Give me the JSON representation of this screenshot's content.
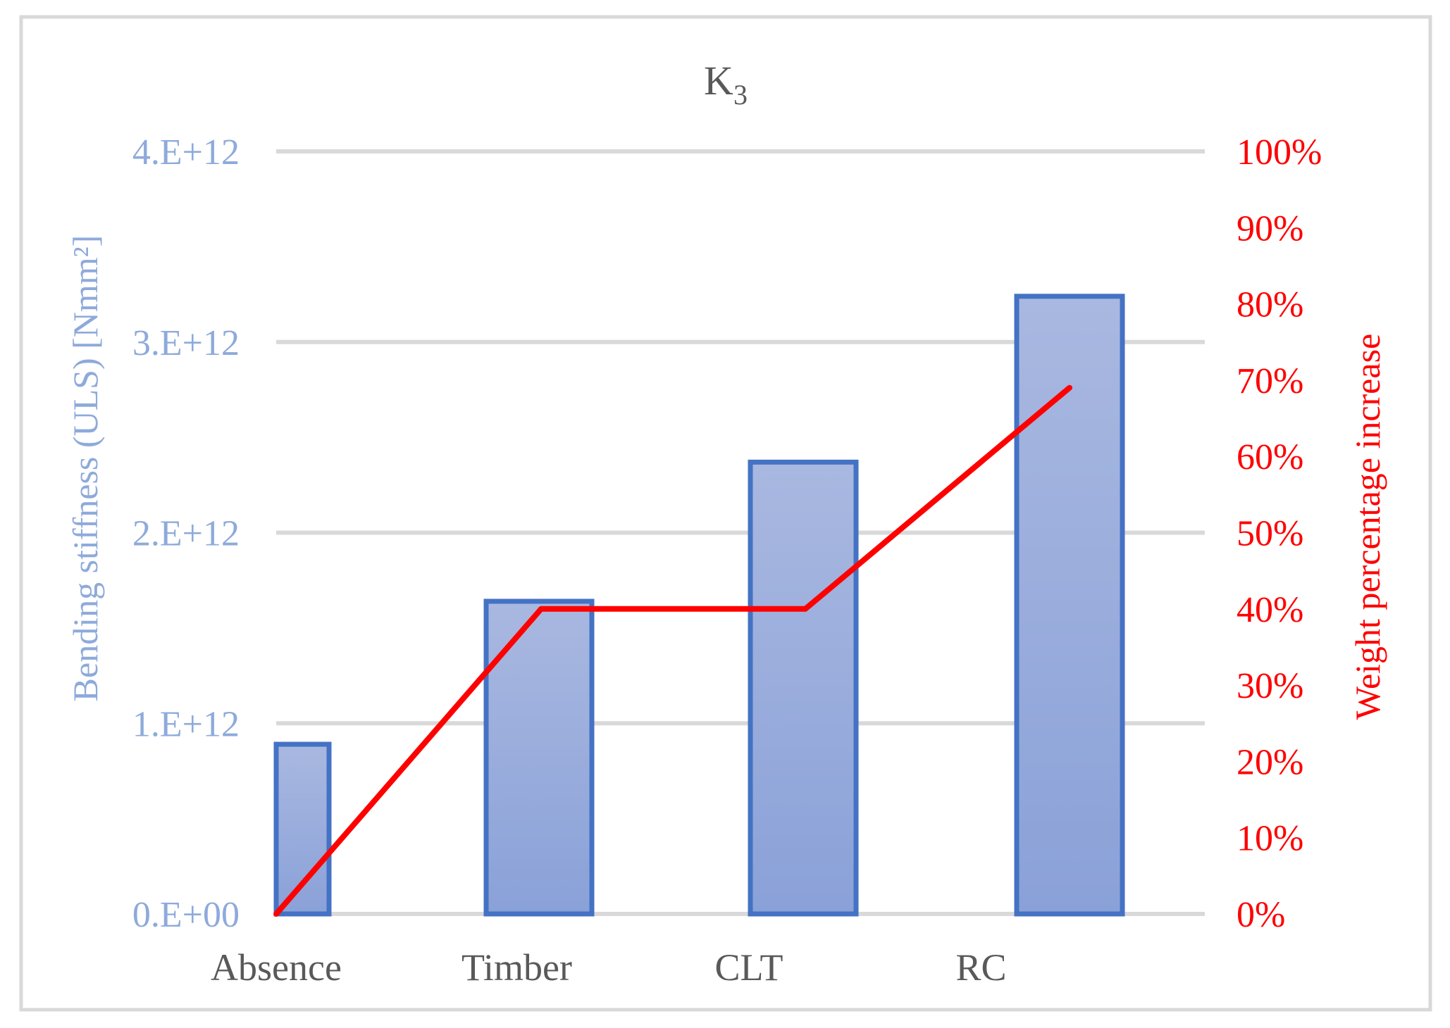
{
  "chart_data": {
    "type": "bar",
    "title": "K",
    "title_subscript": "3",
    "categories": [
      "Absence",
      "Timber",
      "CLT",
      "RC"
    ],
    "series": [
      {
        "name": "",
        "type": "bar",
        "axis": "left",
        "values": [
          890000000000.0,
          1640000000000.0,
          2370000000000.0,
          3240000000000.0
        ]
      },
      {
        "name": "",
        "type": "line",
        "axis": "right",
        "values": [
          0,
          40,
          40,
          69
        ]
      }
    ],
    "y_left": {
      "label": "Bending stiffness (ULS) [Nmm²]",
      "ylim": [
        0,
        4000000000000.0
      ],
      "ticks": [
        0,
        1000000000000.0,
        2000000000000.0,
        3000000000000.0,
        4000000000000.0
      ],
      "tick_labels": [
        "0.E+00",
        "1.E+12",
        "2.E+12",
        "3.E+12",
        "4.E+12"
      ]
    },
    "y_right": {
      "label": "Weight percentage increase",
      "ylim": [
        0,
        100
      ],
      "ticks": [
        0,
        10,
        20,
        30,
        40,
        50,
        60,
        70,
        80,
        90,
        100
      ],
      "tick_labels": [
        "0%",
        "10%",
        "20%",
        "30%",
        "40%",
        "50%",
        "60%",
        "70%",
        "80%",
        "90%",
        "100%"
      ]
    },
    "grid": true,
    "legend": "none",
    "colors": {
      "bar_fill_top": "#a9b8e0",
      "bar_fill_bottom": "#8aa1d8",
      "bar_stroke": "#4472c4",
      "line": "#ff0000",
      "grid": "#d9d9d9",
      "left_axis_text": "#8eaadb",
      "right_axis_text": "#ff0000",
      "category_text": "#595959",
      "title_text": "#595959",
      "frame": "#d9d9d9"
    }
  }
}
